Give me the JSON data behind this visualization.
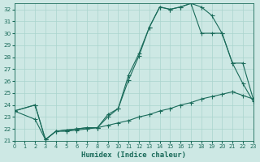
{
  "background_color": "#cde8e4",
  "grid_color": "#aad4ce",
  "line_color": "#1a6b5a",
  "xlabel": "Humidex (Indice chaleur)",
  "xlim": [
    0,
    23
  ],
  "ylim": [
    21,
    32.5
  ],
  "xticks": [
    0,
    1,
    2,
    3,
    4,
    5,
    6,
    7,
    8,
    9,
    10,
    11,
    12,
    13,
    14,
    15,
    16,
    17,
    18,
    19,
    20,
    21,
    22,
    23
  ],
  "yticks": [
    21,
    22,
    23,
    24,
    25,
    26,
    27,
    28,
    29,
    30,
    31,
    32
  ],
  "line1_x": [
    0,
    2,
    3,
    4,
    5,
    6,
    7,
    8,
    9,
    10,
    11,
    12,
    13,
    14,
    15,
    16,
    17,
    18,
    19,
    20,
    21,
    22,
    23
  ],
  "line1_y": [
    23.5,
    24.0,
    21.1,
    21.8,
    21.8,
    21.9,
    22.0,
    22.1,
    23.2,
    23.7,
    26.1,
    28.1,
    30.5,
    32.2,
    32.0,
    32.2,
    32.5,
    32.2,
    31.5,
    30.0,
    27.5,
    25.8,
    24.3
  ],
  "line2_x": [
    0,
    2,
    3,
    4,
    5,
    6,
    7,
    8,
    9,
    10,
    11,
    12,
    13,
    14,
    15,
    16,
    17,
    18,
    19,
    20,
    21,
    22,
    23
  ],
  "line2_y": [
    23.5,
    22.8,
    21.1,
    21.8,
    21.9,
    22.0,
    22.1,
    22.1,
    23.0,
    23.7,
    26.5,
    28.3,
    30.5,
    32.2,
    32.0,
    32.2,
    32.5,
    30.0,
    30.0,
    30.0,
    27.5,
    27.5,
    24.5
  ],
  "line3_x": [
    0,
    2,
    3,
    4,
    5,
    6,
    7,
    8,
    9,
    10,
    11,
    12,
    13,
    14,
    15,
    16,
    17,
    18,
    19,
    20,
    21,
    22,
    23
  ],
  "line3_y": [
    23.5,
    24.0,
    21.1,
    21.8,
    21.9,
    22.0,
    22.1,
    22.1,
    22.3,
    22.5,
    22.7,
    23.0,
    23.2,
    23.5,
    23.7,
    24.0,
    24.2,
    24.5,
    24.7,
    24.9,
    25.1,
    24.8,
    24.5
  ]
}
